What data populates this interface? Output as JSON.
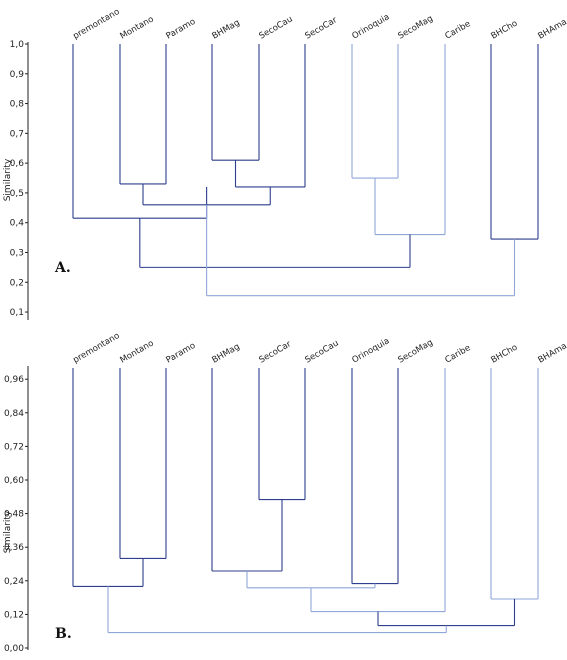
{
  "chart_data": [
    {
      "type": "dendrogram",
      "panel_label": "A.",
      "ylabel": "Similarity",
      "ylim": [
        0.08,
        1.0
      ],
      "yticks": [
        0.1,
        0.2,
        0.3,
        0.4,
        0.5,
        0.6,
        0.7,
        0.8,
        0.9,
        1.0
      ],
      "tick_labels": [
        "0,1",
        "0,2",
        "0,3",
        "0,4",
        "0,5",
        "0,6",
        "0,7",
        "0,8",
        "0,9",
        "1,0"
      ],
      "leaves": [
        "premontano",
        "Montano",
        "Paramo",
        "BHMag",
        "SecoCau",
        "SecoCar",
        "Orinoquia",
        "SecoMag",
        "Caribe",
        "BHCho",
        "BHAma"
      ],
      "merges": [
        {
          "left": 3,
          "right": 4,
          "similarity": 0.61,
          "color": "#2c3e8c"
        },
        {
          "left": 1,
          "right": 2,
          "similarity": 0.53,
          "color": "#2c3e8c"
        },
        {
          "left": 11,
          "right": 5,
          "similarity": 0.52,
          "color": "#2c3e8c"
        },
        {
          "left": 6,
          "right": 7,
          "similarity": 0.55,
          "color": "#8fa6d8"
        },
        {
          "left": 12,
          "right": 13,
          "similarity": 0.46,
          "color": "#2c3e8c"
        },
        {
          "left": 0,
          "right": 12.5,
          "similarity": 0.415,
          "color": "#2c3e8c"
        },
        {
          "left": 14,
          "right": 8,
          "similarity": 0.36,
          "color": "#8fa6d8"
        },
        {
          "left": 9,
          "right": 10,
          "similarity": 0.345,
          "color": "#2c3e8c"
        },
        {
          "left": 16,
          "right": 17,
          "similarity": 0.25,
          "color": "#2c3e8c"
        },
        {
          "left": 15,
          "right": 18,
          "similarity": 0.155,
          "color": "#8fa6d8"
        }
      ]
    },
    {
      "type": "dendrogram",
      "panel_label": "B.",
      "ylabel": "Similarity",
      "ylim": [
        0.0,
        1.0
      ],
      "yticks": [
        0.0,
        0.12,
        0.24,
        0.36,
        0.48,
        0.6,
        0.72,
        0.84,
        0.96
      ],
      "tick_labels": [
        "0,00",
        "0,12",
        "0,24",
        "0,36",
        "0,48",
        "0,60",
        "0,72",
        "0,84",
        "0,96"
      ],
      "leaves": [
        "premontano",
        "Montano",
        "Paramo",
        "BHMag",
        "SecoCar",
        "SecoCau",
        "Orinoquia",
        "SecoMag",
        "Caribe",
        "BHCho",
        "BHAma"
      ],
      "merges": [
        {
          "left": 4,
          "right": 5,
          "similarity": 0.53,
          "color": "#2c3e8c"
        },
        {
          "left": 1,
          "right": 2,
          "similarity": 0.32,
          "color": "#2c3e8c"
        },
        {
          "left": 3,
          "right": 11,
          "similarity": 0.275,
          "color": "#2c3e8c"
        },
        {
          "left": 6,
          "right": 7,
          "similarity": 0.23,
          "color": "#2c3e8c"
        },
        {
          "left": 0,
          "right": 12,
          "similarity": 0.22,
          "color": "#2c3e8c"
        },
        {
          "left": 13,
          "right": 14,
          "similarity": 0.215,
          "color": "#8fa6d8"
        },
        {
          "left": 16,
          "right": 8,
          "similarity": 0.13,
          "color": "#8fa6d8"
        },
        {
          "left": 9,
          "right": 10,
          "similarity": 0.175,
          "color": "#8fa6d8"
        },
        {
          "left": 17,
          "right": 18,
          "similarity": 0.08,
          "color": "#2c3e8c"
        },
        {
          "left": 15,
          "right": 19,
          "similarity": 0.055,
          "color": "#8fa6d8"
        }
      ]
    }
  ]
}
